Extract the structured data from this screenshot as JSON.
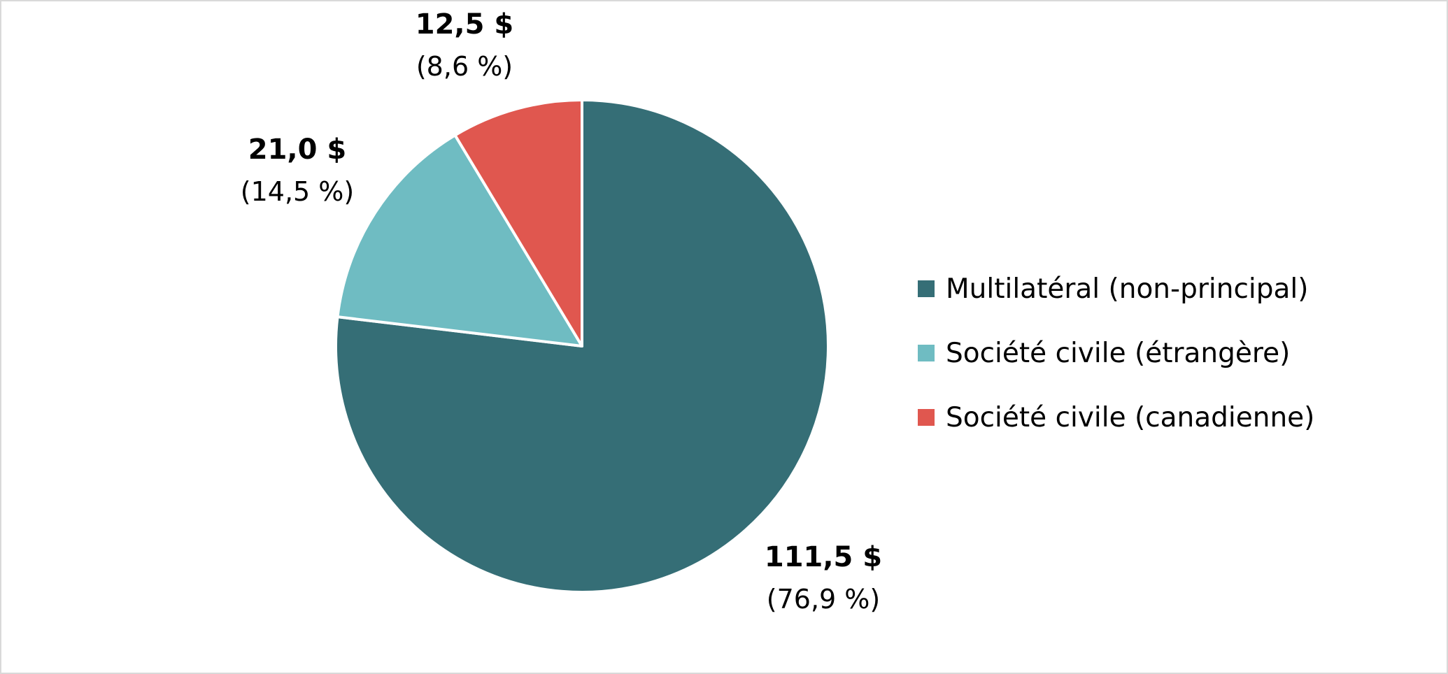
{
  "chart_data": {
    "type": "pie",
    "title": "",
    "start_angle_deg": 0,
    "direction": "clockwise",
    "slices": [
      {
        "name": "Multilatéral (non-principal)",
        "value": 111.5,
        "value_label": "111,5 $",
        "percent_label": "(76,9 %)",
        "color": "#356e76"
      },
      {
        "name": "Société civile (étrangère)",
        "value": 21.0,
        "value_label": "21,0 $",
        "percent_label": "(14,5 %)",
        "color": "#6fbcc2"
      },
      {
        "name": "Société civile (canadienne)",
        "value": 12.5,
        "value_label": "12,5 $",
        "percent_label": "(8,6 %)",
        "color": "#e0574f"
      }
    ],
    "legend": {
      "position": "right"
    }
  }
}
